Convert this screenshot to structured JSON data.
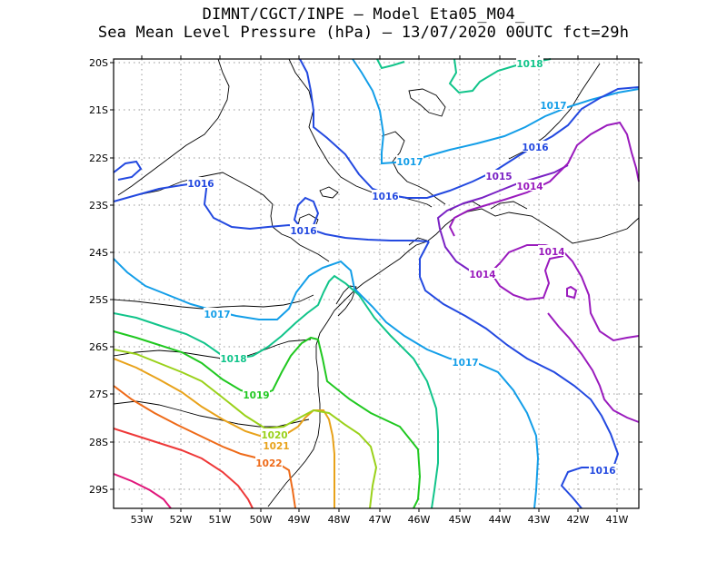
{
  "title": {
    "line1": "DIMNT/CGCT/INPE –   Model Eta05_M04_",
    "line2": "Sea Mean Level Pressure (hPa) – 13/07/2020 00UTC fct=29h"
  },
  "axes": {
    "y_ticks": [
      "20S",
      "21S",
      "22S",
      "23S",
      "24S",
      "25S",
      "26S",
      "27S",
      "28S",
      "29S"
    ],
    "x_ticks": [
      "53W",
      "52W",
      "51W",
      "50W",
      "49W",
      "48W",
      "47W",
      "46W",
      "45W",
      "44W",
      "43W",
      "42W",
      "41W"
    ]
  },
  "contour_labels": [
    {
      "id": "c1018a",
      "text": "1018",
      "color": "#11c48a"
    },
    {
      "id": "c1017a",
      "text": "1017",
      "color": "#139ee8"
    },
    {
      "id": "c1016a",
      "text": "1016",
      "color": "#2349e0"
    },
    {
      "id": "c1017b",
      "text": "1017",
      "color": "#139ee8"
    },
    {
      "id": "c1015a",
      "text": "1015",
      "color": "#7a22c4"
    },
    {
      "id": "c1014a",
      "text": "1014",
      "color": "#9a1bbd"
    },
    {
      "id": "c1016b",
      "text": "1016",
      "color": "#2349e0"
    },
    {
      "id": "c1016c",
      "text": "1016",
      "color": "#2349e0"
    },
    {
      "id": "c1016d",
      "text": "1016",
      "color": "#2349e0"
    },
    {
      "id": "c1014b",
      "text": "1014",
      "color": "#9a1bbd"
    },
    {
      "id": "c1014c",
      "text": "1014",
      "color": "#9a1bbd"
    },
    {
      "id": "c1017c",
      "text": "1017",
      "color": "#139ee8"
    },
    {
      "id": "c1017d",
      "text": "1017",
      "color": "#139ee8"
    },
    {
      "id": "c1018b",
      "text": "1018",
      "color": "#11c48a"
    },
    {
      "id": "c1019",
      "text": "1019",
      "color": "#20c820"
    },
    {
      "id": "c1020",
      "text": "1020",
      "color": "#9ad11a"
    },
    {
      "id": "c1021",
      "text": "1021",
      "color": "#e8a21a"
    },
    {
      "id": "c1022",
      "text": "1022",
      "color": "#ee6a18"
    },
    {
      "id": "c1016e",
      "text": "1016",
      "color": "#2349e0"
    }
  ],
  "colors": {
    "c1014": "#9a1bbd",
    "c1015": "#7a22c4",
    "c1016": "#2349e0",
    "c1017": "#139ee8",
    "c1018": "#11c48a",
    "c1019": "#20c820",
    "c1020": "#9ad11a",
    "c1021": "#e8a21a",
    "c1022": "#ee6a18",
    "c1023": "#ee3838",
    "c1024": "#e0167a",
    "coast": "#000000",
    "grid": "#888888"
  }
}
